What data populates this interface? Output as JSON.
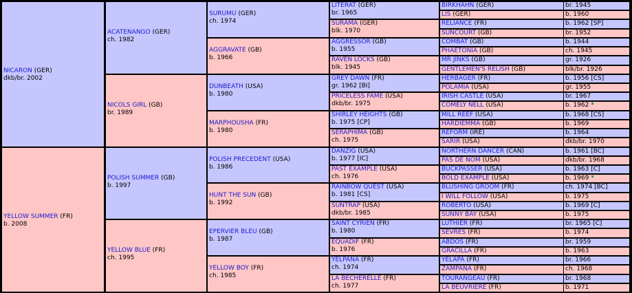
{
  "pedigree": {
    "gen1": [
      {
        "name": "NICARON",
        "country": "(GER)",
        "desc": "dkb/br. 2002",
        "sex": "m"
      },
      {
        "name": "YELLOW SUMMER",
        "country": "(FR)",
        "desc": "b. 2008",
        "sex": "f"
      }
    ],
    "gen2": [
      {
        "name": "ACATENANGO",
        "country": "(GER)",
        "desc": "ch. 1982",
        "sex": "m"
      },
      {
        "name": "NICOLS GIRL",
        "country": "(GB)",
        "desc": "br. 1989",
        "sex": "f"
      },
      {
        "name": "POLISH SUMMER",
        "country": "(GB)",
        "desc": "b. 1997",
        "sex": "m"
      },
      {
        "name": "YELLOW BLUE",
        "country": "(FR)",
        "desc": "ch. 1995",
        "sex": "f"
      }
    ],
    "gen3": [
      {
        "name": "SURUMU",
        "country": "(GER)",
        "desc": "ch. 1974",
        "sex": "m"
      },
      {
        "name": "AGGRAVATE",
        "country": "(GB)",
        "desc": "b. 1966",
        "sex": "f"
      },
      {
        "name": "DUNBEATH",
        "country": "(USA)",
        "desc": "b. 1980",
        "sex": "m"
      },
      {
        "name": "MARPHOUSHA",
        "country": "(FR)",
        "desc": "b. 1980",
        "sex": "f"
      },
      {
        "name": "POLISH PRECEDENT",
        "country": "(USA)",
        "desc": "b. 1986",
        "sex": "m"
      },
      {
        "name": "HUNT THE SUN",
        "country": "(GB)",
        "desc": "b. 1992",
        "sex": "f"
      },
      {
        "name": "EPERVIER BLEU",
        "country": "(GB)",
        "desc": "b. 1987",
        "sex": "m"
      },
      {
        "name": "YELLOW BOY",
        "country": "(FR)",
        "desc": "ch. 1985",
        "sex": "f"
      }
    ],
    "gen4": [
      {
        "name": "LITERAT",
        "country": "(GER)",
        "desc": "br. 1965",
        "sex": "m"
      },
      {
        "name": "SURAMA",
        "country": "(GER)",
        "desc": "blk. 1970",
        "sex": "f"
      },
      {
        "name": "AGGRESSOR",
        "country": "(GB)",
        "desc": "b. 1955",
        "sex": "m"
      },
      {
        "name": "RAVEN LOCKS",
        "country": "(GB)",
        "desc": "blk. 1945",
        "sex": "f"
      },
      {
        "name": "GREY DAWN",
        "country": "(FR)",
        "desc": "gr. 1962 [BI]",
        "sex": "m"
      },
      {
        "name": "PRICELESS FAME",
        "country": "(USA)",
        "desc": "dkb/br. 1975",
        "sex": "f"
      },
      {
        "name": "SHIRLEY HEIGHTS",
        "country": "(GB)",
        "desc": "b. 1975 [CP]",
        "sex": "m"
      },
      {
        "name": "SERAPHIMA",
        "country": "(GB)",
        "desc": "ch. 1975",
        "sex": "f"
      },
      {
        "name": "DANZIG",
        "country": "(USA)",
        "desc": "b. 1977 [IC]",
        "sex": "m"
      },
      {
        "name": "PAST EXAMPLE",
        "country": "(USA)",
        "desc": "ch. 1976",
        "sex": "f"
      },
      {
        "name": "RAINBOW QUEST",
        "country": "(USA)",
        "desc": "b. 1981 [CS]",
        "sex": "m"
      },
      {
        "name": "SUNTRAP",
        "country": "(USA)",
        "desc": "dkb/br. 1985",
        "sex": "f"
      },
      {
        "name": "SAINT CYRIEN",
        "country": "(FR)",
        "desc": "b. 1980",
        "sex": "m"
      },
      {
        "name": "EQUADIF",
        "country": "(FR)",
        "desc": "b. 1976",
        "sex": "f"
      },
      {
        "name": "YELPANA",
        "country": "(FR)",
        "desc": "ch. 1974",
        "sex": "m"
      },
      {
        "name": "LA BECHERELLE",
        "country": "(FR)",
        "desc": "ch. 1977",
        "sex": "f"
      }
    ],
    "gen5": [
      {
        "name": "BIRKHAHN",
        "country": "(GER)",
        "desc": "br. 1945",
        "sex": "m"
      },
      {
        "name": "LIS",
        "country": "(GER)",
        "desc": "b. 1960",
        "sex": "f"
      },
      {
        "name": "RELIANCE",
        "country": "(FR)",
        "desc": "b. 1962 [SP]",
        "sex": "m"
      },
      {
        "name": "SUNCOURT",
        "country": "(GB)",
        "desc": "br. 1952",
        "sex": "f"
      },
      {
        "name": "COMBAT",
        "country": "(GB)",
        "desc": "b. 1944",
        "sex": "m"
      },
      {
        "name": "PHAETONIA",
        "country": "(GB)",
        "desc": "ch. 1945",
        "sex": "f"
      },
      {
        "name": "MR JINKS",
        "country": "(GB)",
        "desc": "gr. 1926",
        "sex": "m"
      },
      {
        "name": "GENTLEMEN'S RELISH",
        "country": "(GB)",
        "desc": "blk/br. 1926",
        "sex": "f"
      },
      {
        "name": "HERBAGER",
        "country": "(FR)",
        "desc": "b. 1956 [CS]",
        "sex": "m"
      },
      {
        "name": "POLAMIA",
        "country": "(USA)",
        "desc": "gr. 1955",
        "sex": "f"
      },
      {
        "name": "IRISH CASTLE",
        "country": "(USA)",
        "desc": "br. 1967",
        "sex": "m"
      },
      {
        "name": "COMELY NELL",
        "country": "(USA)",
        "desc": "b. 1962",
        "star": "*",
        "sex": "f"
      },
      {
        "name": "MILL REEF",
        "country": "(USA)",
        "desc": "b. 1968 [CS]",
        "sex": "m"
      },
      {
        "name": "HARDIEMMA",
        "country": "(GB)",
        "desc": "b. 1969",
        "sex": "f"
      },
      {
        "name": "REFORM",
        "country": "(IRE)",
        "desc": "b. 1964",
        "sex": "m"
      },
      {
        "name": "SARIR",
        "country": "(USA)",
        "desc": "dkb/br. 1970",
        "sex": "f"
      },
      {
        "name": "NORTHERN DANCER",
        "country": "(CAN)",
        "desc": "b. 1961 [BC]",
        "sex": "m"
      },
      {
        "name": "PAS DE NOM",
        "country": "(USA)",
        "desc": "dkb/br. 1968",
        "sex": "f"
      },
      {
        "name": "BUCKPASSER",
        "country": "(USA)",
        "desc": "b. 1963 [C]",
        "sex": "m"
      },
      {
        "name": "BOLD EXAMPLE",
        "country": "(USA)",
        "desc": "b. 1969",
        "star": "*",
        "sex": "f"
      },
      {
        "name": "BLUSHING GROOM",
        "country": "(FR)",
        "desc": "ch. 1974 [BC]",
        "sex": "m"
      },
      {
        "name": "I WILL FOLLOW",
        "country": "(USA)",
        "desc": "b. 1975",
        "sex": "f"
      },
      {
        "name": "ROBERTO",
        "country": "(USA)",
        "desc": "b. 1969 [C]",
        "sex": "m"
      },
      {
        "name": "SUNNY BAY",
        "country": "(USA)",
        "desc": "b. 1975",
        "sex": "f"
      },
      {
        "name": "LUTHIER",
        "country": "(FR)",
        "desc": "br. 1965 [C]",
        "sex": "m"
      },
      {
        "name": "SEVRES",
        "country": "(FR)",
        "desc": "b. 1974",
        "sex": "f"
      },
      {
        "name": "ABDOS",
        "country": "(FR)",
        "desc": "br. 1959",
        "sex": "m"
      },
      {
        "name": "GRACILLA",
        "country": "(FR)",
        "desc": "b. 1963",
        "sex": "f"
      },
      {
        "name": "YELAPA",
        "country": "(FR)",
        "desc": "br. 1966",
        "sex": "m"
      },
      {
        "name": "ZAMPANA",
        "country": "(FR)",
        "desc": "ch. 1968",
        "sex": "f"
      },
      {
        "name": "TOURANGEAU",
        "country": "(FR)",
        "desc": "br. 1968",
        "sex": "m"
      },
      {
        "name": "LA BEUVRIERE",
        "country": "(FR)",
        "desc": "b. 1971",
        "sex": "f"
      }
    ]
  }
}
